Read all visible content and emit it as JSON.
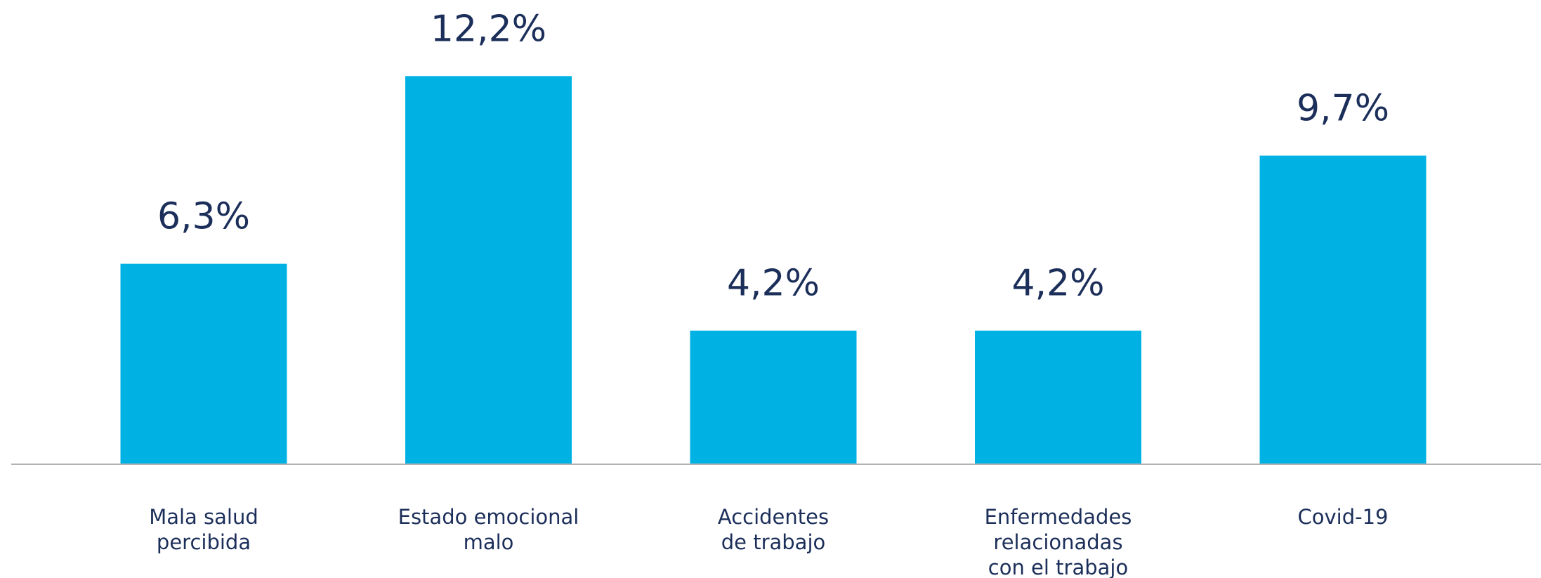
{
  "chart_data": {
    "type": "bar",
    "title": "",
    "xlabel": "",
    "ylabel": "",
    "categories": [
      [
        "Mala salud",
        "percibida"
      ],
      [
        "Estado emocional",
        "malo"
      ],
      [
        "Accidentes",
        "de trabajo"
      ],
      [
        "Enfermedades",
        "relacionadas",
        "con el trabajo"
      ],
      [
        "Covid-19"
      ]
    ],
    "values": [
      6.3,
      12.2,
      4.2,
      4.2,
      9.7
    ],
    "value_labels": [
      "6,3%",
      "12,2%",
      "4,2%",
      "4,2%",
      "9,7%"
    ],
    "ylim": [
      0,
      14
    ],
    "grid": false,
    "legend": "none",
    "colors": {
      "bar": "#00b2e3",
      "text": "#1c2f5a",
      "axis": "#b3b3b3"
    }
  }
}
